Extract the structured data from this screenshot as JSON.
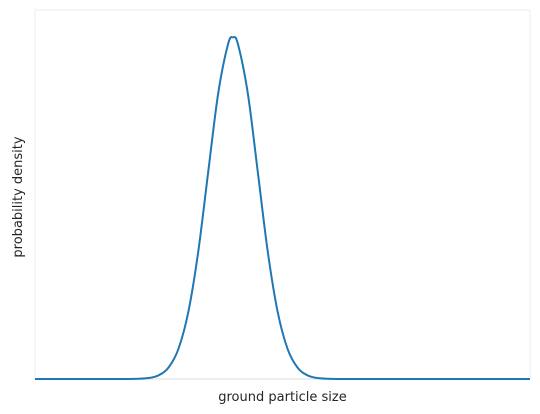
{
  "chart_data": {
    "type": "line",
    "title": "",
    "xlabel": "ground particle size",
    "ylabel": "probability density",
    "x_ticks_shown": false,
    "y_ticks_shown": false,
    "grid": false,
    "legend": "none",
    "xlim": [
      0,
      10
    ],
    "ylim": [
      0,
      1.08
    ],
    "series": [
      {
        "color": "#1f77b4",
        "x": [
          0,
          1.5,
          2.0,
          2.3,
          2.5,
          2.7,
          2.9,
          3.1,
          3.3,
          3.5,
          3.7,
          3.9,
          4.0,
          4.1,
          4.3,
          4.5,
          4.7,
          4.9,
          5.1,
          5.3,
          5.5,
          5.7,
          6.0,
          6.5,
          8.0,
          10
        ],
        "y": [
          0,
          0.0,
          0.0003,
          0.003,
          0.011,
          0.034,
          0.089,
          0.198,
          0.375,
          0.607,
          0.835,
          0.98,
          1.0,
          0.98,
          0.835,
          0.607,
          0.375,
          0.198,
          0.089,
          0.034,
          0.011,
          0.003,
          0.0003,
          0.0,
          0.0,
          0
        ]
      }
    ]
  }
}
